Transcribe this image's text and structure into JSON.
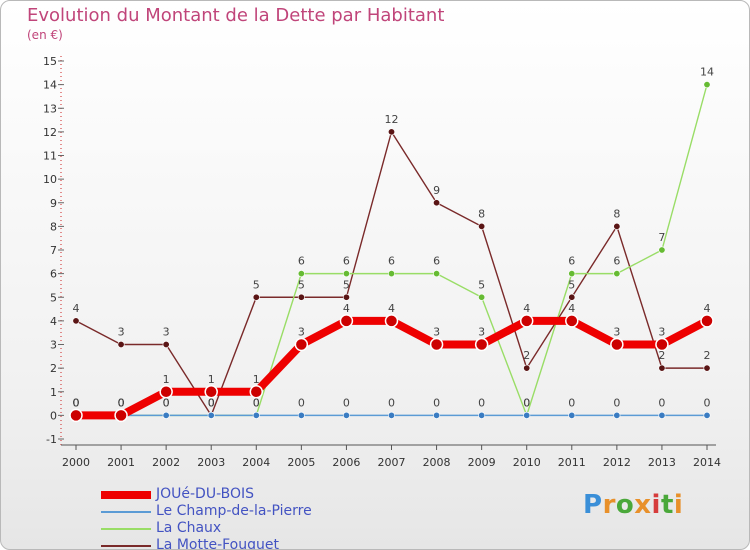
{
  "title": "Evolution du Montant de la Dette par Habitant",
  "subtitle": "(en €)",
  "logo": {
    "text": "Proxiti",
    "letter_colors": [
      "#3a8fd8",
      "#e8902a",
      "#4aa83a",
      "#e8902a",
      "#d63c3c",
      "#4aa83a",
      "#e8902a"
    ]
  },
  "chart_data": {
    "type": "line",
    "title": "Evolution du Montant de la Dette par Habitant",
    "ylabel": "(en €)",
    "x": [
      "2000",
      "2001",
      "2002",
      "2003",
      "2004",
      "2005",
      "2006",
      "2007",
      "2008",
      "2009",
      "2010",
      "2011",
      "2012",
      "2013",
      "2014"
    ],
    "yticks": [
      "-1",
      "0",
      "1",
      "2",
      "3",
      "4",
      "5",
      "6",
      "7",
      "8",
      "9",
      "10",
      "11",
      "12",
      "13",
      "14",
      "15"
    ],
    "ylim": [
      -1,
      15
    ],
    "grid": false,
    "legend_position": "bottom-left",
    "series": [
      {
        "name": "JOUé-DU-BOIS",
        "color": "#ee0000",
        "values": [
          0,
          0,
          1,
          1,
          1,
          3,
          4,
          4,
          3,
          3,
          4,
          4,
          3,
          3,
          4
        ]
      },
      {
        "name": "Le Champ-de-la-Pierre",
        "color": "#5b9bd5",
        "values": [
          0,
          0,
          0,
          0,
          0,
          0,
          0,
          0,
          0,
          0,
          0,
          0,
          0,
          0,
          0
        ]
      },
      {
        "name": "La Chaux",
        "color": "#99dd66",
        "values": [
          0,
          0,
          0,
          0,
          0,
          6,
          6,
          6,
          6,
          5,
          0,
          6,
          6,
          7,
          14
        ]
      },
      {
        "name": "La Motte-Fouquet",
        "color": "#7a2a2a",
        "values": [
          4,
          3,
          3,
          0,
          5,
          5,
          5,
          12,
          9,
          8,
          2,
          5,
          8,
          2,
          2
        ]
      }
    ]
  }
}
